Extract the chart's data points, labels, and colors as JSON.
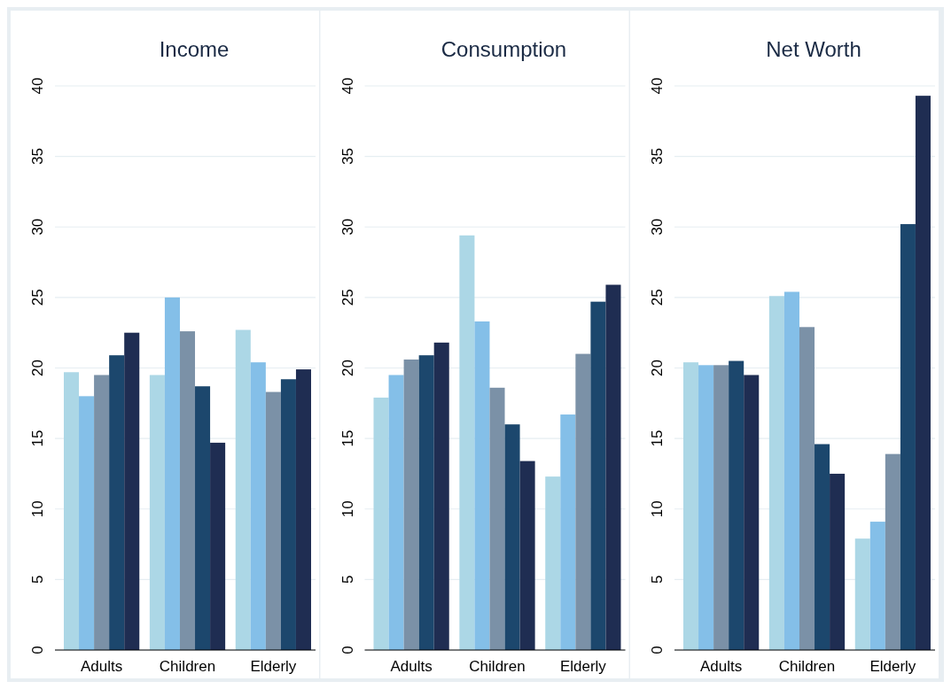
{
  "chart_data": [
    {
      "type": "bar",
      "title": "Income",
      "categories": [
        "Adults",
        "Children",
        "Elderly"
      ],
      "series": [
        {
          "color": "#acd7e6",
          "values": [
            19.7,
            19.5,
            22.7
          ]
        },
        {
          "color": "#84bfe8",
          "values": [
            18.0,
            25.0,
            20.4
          ]
        },
        {
          "color": "#7b91a7",
          "values": [
            19.5,
            22.6,
            18.3
          ]
        },
        {
          "color": "#1c476d",
          "values": [
            20.9,
            18.7,
            19.2
          ]
        },
        {
          "color": "#1f2d52",
          "values": [
            22.5,
            14.7,
            19.9
          ]
        }
      ],
      "ylim": [
        0,
        40
      ],
      "yticks": [
        0,
        5,
        10,
        15,
        20,
        25,
        30,
        35,
        40
      ],
      "grid": "y"
    },
    {
      "type": "bar",
      "title": "Consumption",
      "categories": [
        "Adults",
        "Children",
        "Elderly"
      ],
      "series": [
        {
          "color": "#acd7e6",
          "values": [
            17.9,
            29.4,
            12.3
          ]
        },
        {
          "color": "#84bfe8",
          "values": [
            19.5,
            23.3,
            16.7
          ]
        },
        {
          "color": "#7b91a7",
          "values": [
            20.6,
            18.6,
            21.0
          ]
        },
        {
          "color": "#1c476d",
          "values": [
            20.9,
            16.0,
            24.7
          ]
        },
        {
          "color": "#1f2d52",
          "values": [
            21.8,
            13.4,
            25.9
          ]
        }
      ],
      "ylim": [
        0,
        40
      ],
      "yticks": [
        0,
        5,
        10,
        15,
        20,
        25,
        30,
        35,
        40
      ],
      "grid": "y"
    },
    {
      "type": "bar",
      "title": "Net Worth",
      "categories": [
        "Adults",
        "Children",
        "Elderly"
      ],
      "series": [
        {
          "color": "#acd7e6",
          "values": [
            20.4,
            25.1,
            7.9
          ]
        },
        {
          "color": "#84bfe8",
          "values": [
            20.2,
            25.4,
            9.1
          ]
        },
        {
          "color": "#7b91a7",
          "values": [
            20.2,
            22.9,
            13.9
          ]
        },
        {
          "color": "#1c476d",
          "values": [
            20.5,
            14.6,
            30.2
          ]
        },
        {
          "color": "#1f2d52",
          "values": [
            19.5,
            12.5,
            39.3
          ]
        }
      ],
      "ylim": [
        0,
        40
      ],
      "yticks": [
        0,
        5,
        10,
        15,
        20,
        25,
        30,
        35,
        40
      ],
      "grid": "y"
    }
  ]
}
